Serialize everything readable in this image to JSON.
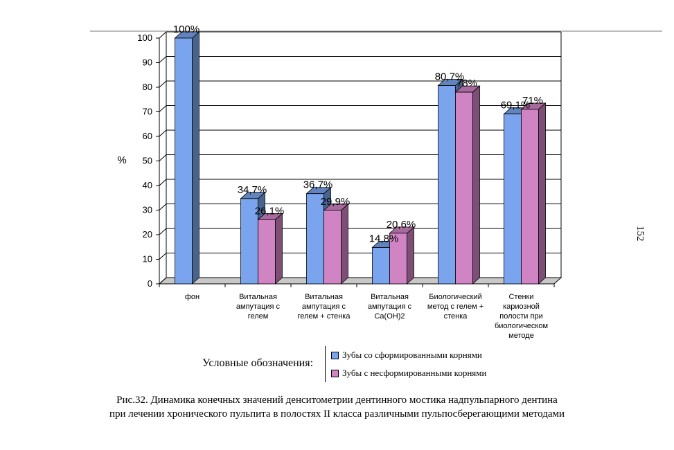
{
  "page_number": "152",
  "chart_data": {
    "type": "bar",
    "ylabel": "%",
    "ylim": [
      0,
      100
    ],
    "yticks": [
      0,
      10,
      20,
      30,
      40,
      50,
      60,
      70,
      80,
      90,
      100
    ],
    "categories": [
      "фон",
      "Витальная ампутация с гелем",
      "Витальная ампутация с гелем + стенка",
      "Витальная ампутация с Ca(OH)2",
      "Биологический метод с гелем + стенка",
      "Стенки кариозной полости при биологическом методе"
    ],
    "category_lines": [
      [
        "фон"
      ],
      [
        "Витальная",
        "ампутация с",
        "гелем"
      ],
      [
        "Витальная",
        "ампутация с",
        "гелем + стенка"
      ],
      [
        "Витальная",
        "ампутация с",
        "Ca(OH)2"
      ],
      [
        "Биологический",
        "метод с гелем +",
        "стенка"
      ],
      [
        "Стенки",
        "кариозной",
        "полости при",
        "биологическом",
        "методе"
      ]
    ],
    "series": [
      {
        "name": "Зубы со сформированными корнями",
        "color": "#7aa5ee",
        "values": [
          100,
          34.7,
          36.7,
          14.8,
          80.7,
          69.1
        ],
        "labels": [
          "100%",
          "34,7%",
          "36,7%",
          "14,8%",
          "80,7%",
          "69,1%"
        ]
      },
      {
        "name": "Зубы с несформированными корнями",
        "color": "#d184c4",
        "values": [
          null,
          26.1,
          29.9,
          20.6,
          78,
          71
        ],
        "labels": [
          "",
          "26,1%",
          "29,9%",
          "20,6%",
          "78%",
          "71%"
        ]
      }
    ],
    "grid": true,
    "legend_position": "bottom"
  },
  "legend": {
    "title": "Условные обозначения:"
  },
  "caption": {
    "line1": "Рис.32.   Динамика конечных значений денситометрии дентинного мостика надпульпарного дентина",
    "line2": "при лечении хронического  пульпита в полостях II класса различными пульпосберегающими методами"
  }
}
